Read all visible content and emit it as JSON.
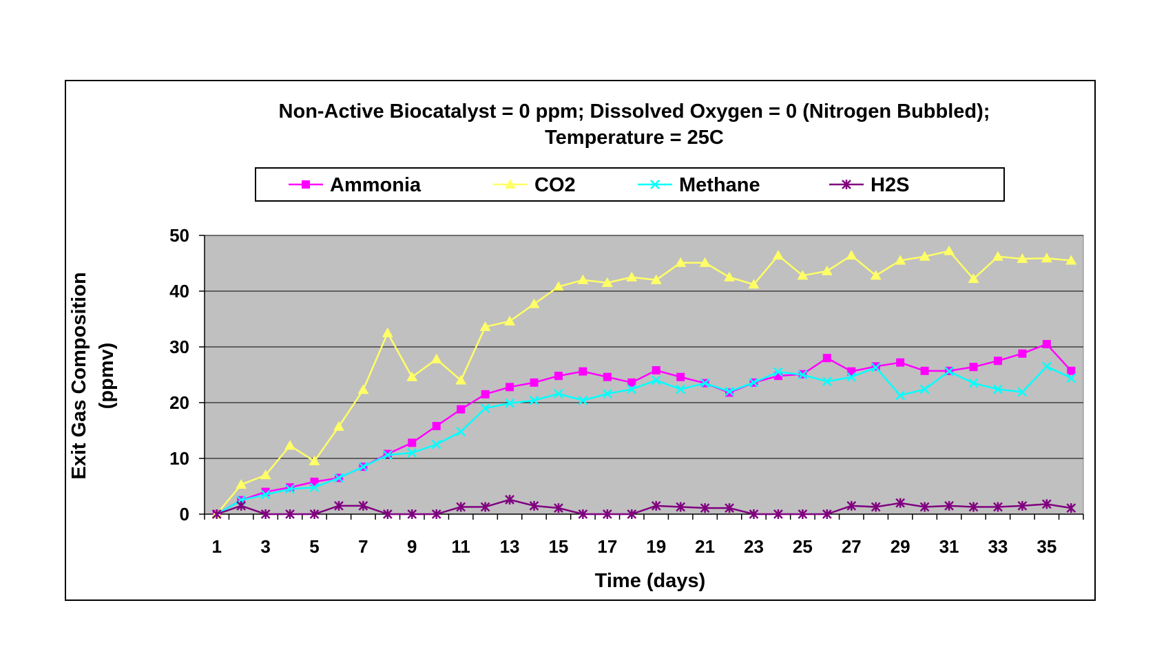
{
  "chart_data": {
    "type": "line",
    "title": "Non-Active Biocatalyst = 0 ppm; Dissolved Oxygen = 0 (Nitrogen Bubbled);",
    "subtitle": "Temperature = 25C",
    "xlabel": "Time (days)",
    "ylabel": "Exit Gas Composition",
    "ylabel_unit": "(ppmv)",
    "ylim": [
      0,
      50
    ],
    "yticks": [
      "0",
      "10",
      "20",
      "30",
      "40",
      "50"
    ],
    "xticks": [
      "1",
      "3",
      "5",
      "7",
      "9",
      "11",
      "13",
      "15",
      "17",
      "19",
      "21",
      "23",
      "25",
      "27",
      "29",
      "31",
      "33",
      "35"
    ],
    "x": [
      1,
      2,
      3,
      4,
      5,
      6,
      7,
      8,
      9,
      10,
      11,
      12,
      13,
      14,
      15,
      16,
      17,
      18,
      19,
      20,
      21,
      22,
      23,
      24,
      25,
      26,
      27,
      28,
      29,
      30,
      31,
      32,
      33,
      34,
      35,
      36
    ],
    "grid": true,
    "plot_background": "#c0c0c0",
    "legend_position": "top",
    "series": [
      {
        "name": "Ammonia",
        "color": "#ff00ff",
        "marker": "square",
        "values": [
          0,
          2.5,
          4,
          4.8,
          5.8,
          6.5,
          8.5,
          10.8,
          12.8,
          15.8,
          18.8,
          21.5,
          22.8,
          23.6,
          24.8,
          25.6,
          24.6,
          23.6,
          25.8,
          24.6,
          23.5,
          21.8,
          23.6,
          24.8,
          25.1,
          28,
          25.6,
          26.5,
          27.2,
          25.7,
          25.7,
          26.4,
          27.5,
          28.8,
          30.5,
          25.7
        ]
      },
      {
        "name": "CO2",
        "color": "#ffff66",
        "marker": "triangle",
        "values": [
          0,
          5.3,
          7,
          12.3,
          9.5,
          15.7,
          22.3,
          32.5,
          24.6,
          27.8,
          24,
          33.6,
          34.6,
          37.7,
          40.8,
          42,
          41.5,
          42.5,
          42,
          45.1,
          45.1,
          42.5,
          41.2,
          46.4,
          42.8,
          43.6,
          46.4,
          42.8,
          45.5,
          46.2,
          47.2,
          42.2,
          46.2,
          45.8,
          45.9,
          45.5
        ]
      },
      {
        "name": "Methane",
        "color": "#00ffff",
        "marker": "x",
        "values": [
          0,
          2.5,
          3.5,
          4.5,
          4.8,
          6.5,
          8.5,
          10.6,
          11,
          12.5,
          14.8,
          19,
          19.9,
          20.4,
          21.6,
          20.4,
          21.6,
          22.4,
          24,
          22.4,
          23.5,
          22,
          23.6,
          25.5,
          25,
          23.8,
          24.6,
          26.3,
          21.3,
          22.4,
          25.6,
          23.5,
          22.4,
          21.9,
          26.5,
          24.4
        ]
      },
      {
        "name": "H2S",
        "color": "#800080",
        "marker": "star",
        "values": [
          0,
          1.5,
          0,
          0,
          0,
          1.5,
          1.5,
          0,
          0,
          0,
          1.3,
          1.3,
          2.6,
          1.5,
          1.1,
          0,
          0,
          0,
          1.5,
          1.3,
          1.1,
          1.1,
          0,
          0,
          0,
          0,
          1.5,
          1.3,
          2,
          1.3,
          1.5,
          1.3,
          1.3,
          1.5,
          1.8,
          1.1
        ]
      }
    ]
  }
}
